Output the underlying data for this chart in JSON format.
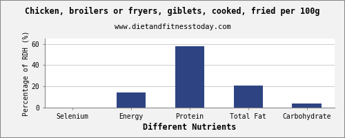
{
  "title": "Chicken, broilers or fryers, giblets, cooked, fried per 100g",
  "subtitle": "www.dietandfitnesstoday.com",
  "xlabel": "Different Nutrients",
  "ylabel": "Percentage of RDH (%)",
  "categories": [
    "Selenium",
    "Energy",
    "Protein",
    "Total Fat",
    "Carbohydrate"
  ],
  "values": [
    0.3,
    14.0,
    58.0,
    21.0,
    4.0
  ],
  "bar_color": "#2e4482",
  "ylim": [
    0,
    65
  ],
  "yticks": [
    0,
    20,
    40,
    60
  ],
  "background_color": "#f2f2f2",
  "plot_bg_color": "#ffffff",
  "title_fontsize": 8.5,
  "subtitle_fontsize": 7.5,
  "xlabel_fontsize": 8.5,
  "ylabel_fontsize": 7.0,
  "tick_fontsize": 7.0,
  "grid_color": "#cccccc",
  "border_color": "#888888"
}
